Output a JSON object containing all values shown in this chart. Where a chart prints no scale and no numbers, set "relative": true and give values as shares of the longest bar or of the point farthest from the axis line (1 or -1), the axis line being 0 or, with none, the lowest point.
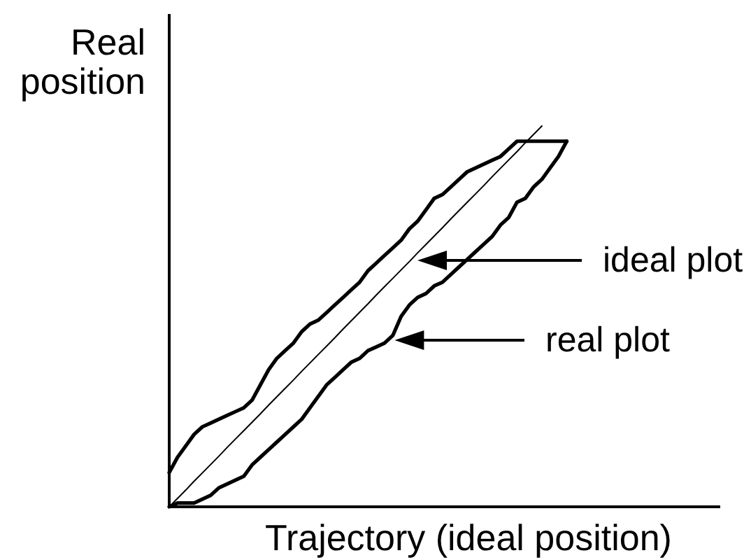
{
  "chart_data": {
    "type": "line",
    "relative": true,
    "xlabel": "Trajectory (ideal position)",
    "ylabel": "Real position",
    "legend": "right",
    "categories": [
      null,
      null,
      null,
      null,
      null,
      null,
      null,
      null,
      null,
      null,
      null,
      null,
      null,
      null,
      null,
      null,
      null,
      null,
      null,
      null,
      null,
      null,
      null,
      null,
      null,
      null,
      null,
      null,
      null,
      null,
      null,
      null,
      null,
      null,
      null,
      null,
      null,
      null,
      null,
      null,
      null,
      null,
      null,
      null,
      null,
      null,
      null,
      null,
      null,
      null,
      null,
      null,
      null,
      null,
      null,
      null,
      null,
      null,
      null,
      null,
      null,
      null,
      null,
      null,
      null
    ],
    "series": [
      {
        "name": "ideal plot",
        "color": "#000000",
        "values": [
          0,
          0.022,
          0.044,
          0.067,
          0.089,
          0.111,
          0.133,
          0.156,
          0.178,
          0.2,
          0.222,
          0.244,
          0.267,
          0.289,
          0.311,
          0.333,
          0.356,
          0.378,
          0.4,
          0.422,
          0.444,
          0.467,
          0.489,
          0.511,
          0.533,
          0.556,
          0.578,
          0.6,
          0.622,
          0.644,
          0.667,
          0.689,
          0.711,
          0.733,
          0.756,
          0.778,
          0.8,
          0.822,
          0.844,
          0.867,
          0.889,
          0.911,
          0.933,
          0.956,
          0.978,
          1,
          null,
          null,
          null,
          null,
          null,
          null,
          null,
          null,
          null,
          null,
          null,
          null,
          null,
          null,
          null,
          null,
          null,
          null,
          null
        ]
      },
      {
        "name": "real plot",
        "color": "#000000",
        "values": [
          0,
          0.01,
          0.01,
          0.01,
          0.02,
          0.03,
          0.05,
          0.06,
          0.07,
          0.08,
          0.11,
          0.13,
          0.15,
          0.17,
          0.19,
          0.21,
          0.23,
          0.26,
          0.29,
          0.32,
          0.34,
          0.36,
          0.38,
          0.39,
          0.41,
          0.42,
          0.43,
          0.45,
          0.5,
          0.53,
          0.55,
          0.56,
          0.58,
          0.59,
          0.61,
          0.63,
          0.65,
          0.67,
          0.69,
          0.71,
          0.74,
          0.76,
          0.8,
          0.81,
          0.84,
          0.86,
          0.89,
          0.92,
          0.96,
          null,
          null,
          null,
          null,
          null,
          null,
          null,
          null,
          null,
          null,
          null,
          null,
          null,
          null,
          null,
          null
        ]
      },
      {
        "color": "#000000",
        "values": [
          0.09,
          0.13,
          0.16,
          0.19,
          0.21,
          0.22,
          0.23,
          0.24,
          0.25,
          0.26,
          0.28,
          0.32,
          0.36,
          0.39,
          0.41,
          0.43,
          0.46,
          0.48,
          0.49,
          0.51,
          0.53,
          0.55,
          0.57,
          0.59,
          0.62,
          0.64,
          0.66,
          0.68,
          0.7,
          0.73,
          0.75,
          0.78,
          0.81,
          0.82,
          0.84,
          0.86,
          0.88,
          0.89,
          0.9,
          0.91,
          0.92,
          0.94,
          0.96,
          0.96,
          0.96,
          0.96,
          0.96,
          0.96,
          0.96,
          null,
          null,
          null,
          null,
          null,
          null,
          null,
          null,
          null,
          null,
          null,
          null,
          null,
          null,
          null,
          null
        ]
      }
    ]
  }
}
